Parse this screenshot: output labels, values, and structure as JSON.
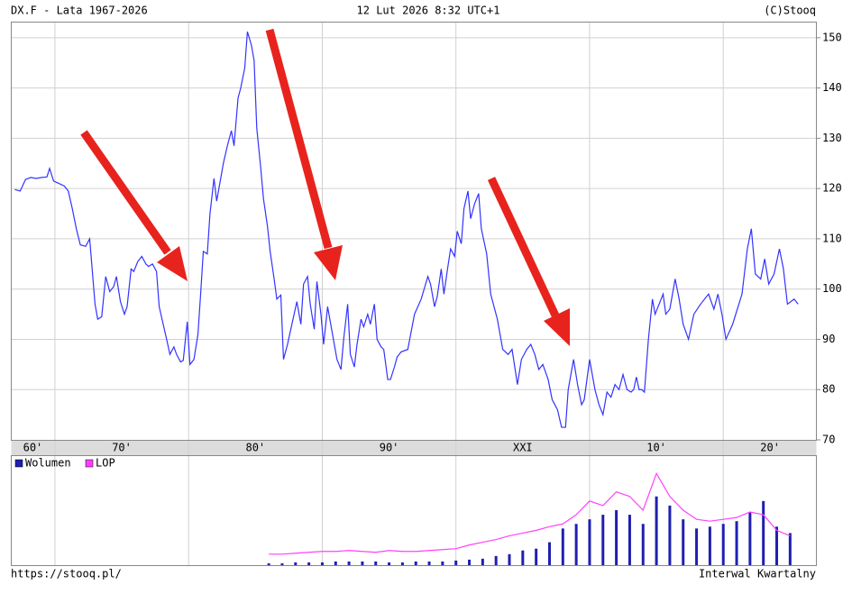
{
  "chart_data": [
    {
      "type": "line",
      "title": "DX.F - Lata 1967-2026",
      "timestamp": "12 Lut 2026 8:32 UTC+1",
      "copyright": "(C)Stooq",
      "color": "#3333ff",
      "xlim": [
        1966.7,
        2027
      ],
      "ylim": [
        70,
        153.2
      ],
      "yticks": [
        70,
        80,
        90,
        100,
        110,
        120,
        130,
        140,
        150
      ],
      "xgrid": [
        1970,
        1980,
        1990,
        2000,
        2010,
        2020
      ],
      "grid": true,
      "decades": [
        {
          "label": "60'",
          "from": 1966.7,
          "to": 1970
        },
        {
          "label": "70'",
          "from": 1970,
          "to": 1980
        },
        {
          "label": "80'",
          "from": 1980,
          "to": 1990
        },
        {
          "label": "90'",
          "from": 1990,
          "to": 2000
        },
        {
          "label": "XXI",
          "from": 2000,
          "to": 2010
        },
        {
          "label": "10'",
          "from": 2010,
          "to": 2020
        },
        {
          "label": "20'",
          "from": 2020,
          "to": 2027
        }
      ],
      "x": [
        1967.0,
        1967.4,
        1967.8,
        1968.2,
        1968.6,
        1969.0,
        1969.4,
        1969.6,
        1969.9,
        1970.3,
        1970.7,
        1971.0,
        1971.3,
        1971.6,
        1971.9,
        1972.3,
        1972.6,
        1973.0,
        1973.2,
        1973.5,
        1973.8,
        1974.1,
        1974.4,
        1974.6,
        1974.9,
        1975.2,
        1975.4,
        1975.7,
        1975.9,
        1976.2,
        1976.5,
        1976.8,
        1977.0,
        1977.3,
        1977.6,
        1977.8,
        1978.1,
        1978.4,
        1978.6,
        1978.9,
        1979.1,
        1979.4,
        1979.6,
        1979.9,
        1980.1,
        1980.4,
        1980.7,
        1980.9,
        1981.1,
        1981.4,
        1981.6,
        1981.9,
        1982.1,
        1982.4,
        1982.6,
        1982.9,
        1983.2,
        1983.4,
        1983.7,
        1983.9,
        1984.2,
        1984.4,
        1984.7,
        1984.9,
        1985.1,
        1985.4,
        1985.6,
        1985.9,
        1986.1,
        1986.4,
        1986.6,
        1986.9,
        1987.1,
        1987.4,
        1988.1,
        1988.4,
        1988.6,
        1988.9,
        1989.1,
        1989.4,
        1989.6,
        1989.9,
        1990.1,
        1990.4,
        1991.1,
        1991.4,
        1991.6,
        1991.9,
        1992.1,
        1992.4,
        1992.6,
        1992.9,
        1993.1,
        1993.4,
        1993.6,
        1993.9,
        1994.1,
        1994.4,
        1994.6,
        1994.9,
        1995.1,
        1995.4,
        1995.6,
        1995.9,
        1996.4,
        1996.9,
        1997.4,
        1997.9,
        1998.1,
        1998.4,
        1998.6,
        1998.9,
        1999.1,
        1999.4,
        1999.6,
        1999.9,
        2000.1,
        2000.4,
        2000.6,
        2000.9,
        2001.1,
        2001.4,
        2001.7,
        2001.9,
        2002.3,
        2002.6,
        2003.1,
        2003.5,
        2003.9,
        2004.2,
        2004.6,
        2004.9,
        2005.3,
        2005.6,
        2005.9,
        2006.2,
        2006.5,
        2006.9,
        2007.2,
        2007.6,
        2007.9,
        2008.2,
        2008.4,
        2008.8,
        2009.1,
        2009.4,
        2009.6,
        2010.0,
        2010.4,
        2010.7,
        2011.0,
        2011.3,
        2011.6,
        2011.9,
        2012.2,
        2012.5,
        2012.8,
        2013.1,
        2013.3,
        2013.5,
        2013.7,
        2013.9,
        2014.1,
        2014.4,
        2014.7,
        2014.9,
        2015.2,
        2015.5,
        2015.7,
        2016.0,
        2016.4,
        2016.7,
        2017.0,
        2017.4,
        2017.8,
        2018.3,
        2018.9,
        2019.3,
        2019.6,
        2019.9,
        2020.2,
        2020.7,
        2021.4,
        2021.8,
        2022.1,
        2022.4,
        2022.8,
        2023.1,
        2023.4,
        2023.8,
        2024.2,
        2024.5,
        2024.8,
        2025.3,
        2025.6
      ],
      "values": [
        119.8,
        119.5,
        121.8,
        122.2,
        122.0,
        122.2,
        122.3,
        124.0,
        121.5,
        121.0,
        120.5,
        119.5,
        116.0,
        112.0,
        108.8,
        108.5,
        110.0,
        97.0,
        94.0,
        94.5,
        102.5,
        99.5,
        100.5,
        102.5,
        97.5,
        95.0,
        96.5,
        104.0,
        103.5,
        105.5,
        106.5,
        105.0,
        104.5,
        105.0,
        103.5,
        96.5,
        93.0,
        89.5,
        87.0,
        88.5,
        87.0,
        85.5,
        85.8,
        93.5,
        85.0,
        86.0,
        91.0,
        99.0,
        107.5,
        107.0,
        115.0,
        122.0,
        117.5,
        122.0,
        125.0,
        128.5,
        131.5,
        128.5,
        138.0,
        140.0,
        144.0,
        151.2,
        148.5,
        145.5,
        132.0,
        124.0,
        118.0,
        112.5,
        107.5,
        102.0,
        98.0,
        98.8,
        86.0,
        89.0,
        97.5,
        93.0,
        101.0,
        102.5,
        97.0,
        92.0,
        101.5,
        95.0,
        89.0,
        96.5,
        86.0,
        84.0,
        90.0,
        97.0,
        87.0,
        84.5,
        89.0,
        94.0,
        92.5,
        95.0,
        93.0,
        97.0,
        90.0,
        88.5,
        88.0,
        82.0,
        82.0,
        84.5,
        86.5,
        87.5,
        88.0,
        95.0,
        98.0,
        102.5,
        101.0,
        96.5,
        98.5,
        104.0,
        99.0,
        104.5,
        108.0,
        106.5,
        111.5,
        109.0,
        116.0,
        119.5,
        114.0,
        117.0,
        119.0,
        112.0,
        107.0,
        99.0,
        94.0,
        88.0,
        87.0,
        88.0,
        81.0,
        86.0,
        88.0,
        89.0,
        87.0,
        84.0,
        85.0,
        82.0,
        78.0,
        76.0,
        72.5,
        72.5,
        80.0,
        86.0,
        81.0,
        77.0,
        78.0,
        86.0,
        80.0,
        77.0,
        75.0,
        79.5,
        78.5,
        81.0,
        80.0,
        83.0,
        80.0,
        79.5,
        80.0,
        82.5,
        80.0,
        80.0,
        79.5,
        90.0,
        98.0,
        95.0,
        97.0,
        99.0,
        95.0,
        96.0,
        102.0,
        98.0,
        93.0,
        90.0,
        95.0,
        97.0,
        99.0,
        96.0,
        99.0,
        95.0,
        90.0,
        93.0,
        99.0,
        108.0,
        112.0,
        103.0,
        102.0,
        106.0,
        101.0,
        103.0,
        108.0,
        104.0,
        97.0,
        98.0,
        97.0
      ]
    },
    {
      "type": "bar",
      "xlim": [
        1966.7,
        2027
      ],
      "ylim": [
        0,
        120
      ],
      "xgrid": [
        1970,
        1980,
        1990,
        2000,
        2010,
        2020
      ],
      "legend": "top-left",
      "x": [
        1986,
        1987,
        1988,
        1989,
        1990,
        1991,
        1992,
        1993,
        1994,
        1995,
        1996,
        1997,
        1998,
        1999,
        2000,
        2001,
        2002,
        2003,
        2004,
        2005,
        2006,
        2007,
        2008,
        2009,
        2010,
        2011,
        2012,
        2013,
        2014,
        2015,
        2016,
        2017,
        2018,
        2019,
        2020,
        2021,
        2022,
        2023,
        2024,
        2025
      ],
      "series": [
        {
          "name": "Wolumen",
          "color": "#1f1fb0",
          "type": "bar",
          "values": [
            2,
            2,
            3,
            3,
            3,
            4,
            4,
            4,
            4,
            3,
            3,
            4,
            4,
            4,
            5,
            6,
            7,
            10,
            12,
            16,
            18,
            25,
            40,
            45,
            50,
            55,
            60,
            55,
            45,
            75,
            65,
            50,
            40,
            42,
            45,
            48,
            58,
            70,
            42,
            35
          ]
        },
        {
          "name": "LOP",
          "color": "#ff40ff",
          "type": "line",
          "values": [
            12,
            12,
            13,
            14,
            15,
            15,
            16,
            15,
            14,
            16,
            15,
            15,
            16,
            17,
            18,
            22,
            25,
            28,
            32,
            35,
            38,
            42,
            45,
            55,
            70,
            65,
            80,
            75,
            60,
            100,
            75,
            60,
            50,
            48,
            50,
            52,
            58,
            55,
            38,
            32
          ]
        }
      ]
    }
  ],
  "footer": {
    "url": "https://stooq.pl/",
    "interval": "Interwal Kwartalny"
  }
}
